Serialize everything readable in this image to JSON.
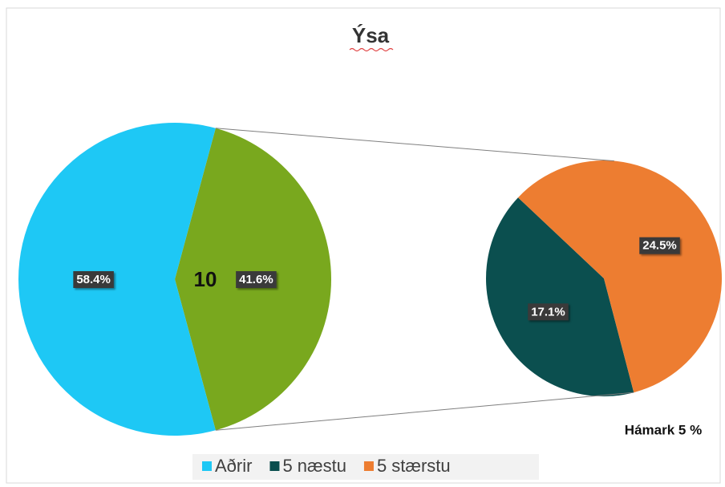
{
  "chart_data": {
    "type": "pie",
    "title": "Ýsa",
    "main": {
      "categories": [
        "Aðrir",
        null
      ],
      "values": [
        58.4,
        41.6
      ],
      "value_labels": [
        "58.4%",
        "41.6%"
      ],
      "colors": [
        "#1ec8f5",
        "#79a81e"
      ]
    },
    "secondary": {
      "categories": [
        "5 næstu",
        "5 stærstu"
      ],
      "values": [
        17.1,
        24.5
      ],
      "value_labels": [
        "17.1%",
        "24.5%"
      ],
      "colors": [
        "#0b4f4f",
        "#ed7d31"
      ]
    },
    "annotations": [
      "10",
      "Hámark 5 %"
    ]
  }
}
